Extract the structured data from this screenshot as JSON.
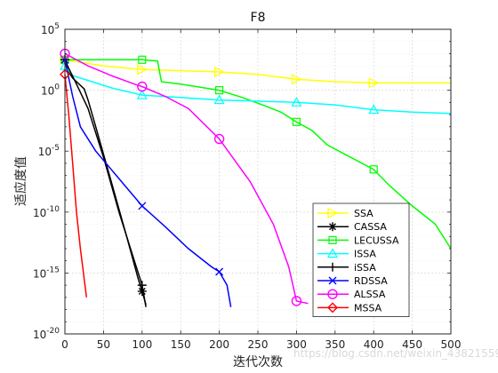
{
  "chart_data": {
    "type": "line",
    "title": "F8",
    "xlabel": "迭代次数",
    "ylabel": "适应度值",
    "xlim": [
      0,
      500
    ],
    "ylim_log10": [
      -20,
      5
    ],
    "yscale": "log",
    "x_ticks": [
      "0",
      "50",
      "100",
      "150",
      "200",
      "250",
      "300",
      "350",
      "400",
      "450",
      "500"
    ],
    "y_ticks": [
      {
        "base": "10",
        "exp": "5"
      },
      {
        "base": "10",
        "exp": "0"
      },
      {
        "base": "10",
        "exp": "-5"
      },
      {
        "base": "10",
        "exp": "-10"
      },
      {
        "base": "10",
        "exp": "-15"
      },
      {
        "base": "10",
        "exp": "-20"
      }
    ],
    "grid": true,
    "legend_position": "bottom-right",
    "series": [
      {
        "name": "SSA",
        "color": "#ffff00",
        "marker": "triangle-right",
        "points": [
          [
            0,
            2.5
          ],
          [
            50,
            2.0
          ],
          [
            100,
            1.7
          ],
          [
            150,
            1.6
          ],
          [
            200,
            1.5
          ],
          [
            250,
            1.3
          ],
          [
            300,
            0.9
          ],
          [
            350,
            0.7
          ],
          [
            400,
            0.6
          ],
          [
            450,
            0.6
          ],
          [
            500,
            0.6
          ]
        ],
        "marker_x": [
          0,
          100,
          200,
          300,
          400
        ]
      },
      {
        "name": "CASSA",
        "color": "#000000",
        "marker": "asterisk",
        "points": [
          [
            0,
            2.5
          ],
          [
            5,
            1.5
          ],
          [
            10,
            1.0
          ],
          [
            15,
            0.7
          ],
          [
            20,
            0.4
          ],
          [
            25,
            0.1
          ],
          [
            30,
            -0.8
          ],
          [
            40,
            -3.0
          ],
          [
            60,
            -7.5
          ],
          [
            80,
            -12.0
          ],
          [
            95,
            -15.5
          ],
          [
            100,
            -16.5
          ],
          [
            105,
            -17.6
          ]
        ],
        "marker_x": [
          0,
          100
        ]
      },
      {
        "name": "LECUSSA",
        "color": "#00ff00",
        "marker": "square",
        "points": [
          [
            0,
            2.5
          ],
          [
            50,
            2.5
          ],
          [
            100,
            2.5
          ],
          [
            120,
            2.4
          ],
          [
            125,
            0.7
          ],
          [
            150,
            0.5
          ],
          [
            200,
            0.0
          ],
          [
            230,
            -0.6
          ],
          [
            260,
            -1.3
          ],
          [
            280,
            -1.8
          ],
          [
            300,
            -2.6
          ],
          [
            320,
            -3.3
          ],
          [
            340,
            -4.5
          ],
          [
            370,
            -5.5
          ],
          [
            400,
            -6.5
          ],
          [
            420,
            -7.8
          ],
          [
            450,
            -9.5
          ],
          [
            480,
            -11.0
          ],
          [
            500,
            -13.0
          ]
        ],
        "marker_x": [
          0,
          100,
          200,
          300,
          400
        ]
      },
      {
        "name": "ISSA",
        "color": "#00ffff",
        "marker": "triangle-up",
        "points": [
          [
            0,
            2.0
          ],
          [
            10,
            1.2
          ],
          [
            30,
            0.8
          ],
          [
            60,
            0.2
          ],
          [
            100,
            -0.4
          ],
          [
            150,
            -0.6
          ],
          [
            200,
            -0.8
          ],
          [
            250,
            -0.9
          ],
          [
            300,
            -1.0
          ],
          [
            350,
            -1.2
          ],
          [
            400,
            -1.6
          ],
          [
            450,
            -1.8
          ],
          [
            500,
            -1.9
          ]
        ],
        "marker_x": [
          0,
          100,
          200,
          300,
          400
        ]
      },
      {
        "name": "iSSA",
        "color": "#000000",
        "marker": "plus",
        "points": [
          [
            0,
            2.5
          ],
          [
            5,
            1.8
          ],
          [
            15,
            0.5
          ],
          [
            30,
            -1.5
          ],
          [
            50,
            -5.5
          ],
          [
            70,
            -10.0
          ],
          [
            90,
            -14.0
          ],
          [
            100,
            -16.0
          ],
          [
            105,
            -17.8
          ]
        ],
        "marker_x": [
          0,
          100
        ]
      },
      {
        "name": "RDSSA",
        "color": "#0000ff",
        "marker": "x",
        "points": [
          [
            0,
            2.5
          ],
          [
            10,
            -0.5
          ],
          [
            20,
            -3.0
          ],
          [
            40,
            -5.0
          ],
          [
            60,
            -6.5
          ],
          [
            80,
            -8.0
          ],
          [
            100,
            -9.5
          ],
          [
            130,
            -11.2
          ],
          [
            160,
            -13.0
          ],
          [
            190,
            -14.5
          ],
          [
            200,
            -14.9
          ],
          [
            210,
            -16.0
          ],
          [
            215,
            -17.8
          ]
        ],
        "marker_x": [
          0,
          100,
          200
        ]
      },
      {
        "name": "ALSSA",
        "color": "#ff00ff",
        "marker": "circle",
        "points": [
          [
            0,
            3.0
          ],
          [
            30,
            2.0
          ],
          [
            60,
            1.2
          ],
          [
            90,
            0.5
          ],
          [
            100,
            0.3
          ],
          [
            130,
            -0.5
          ],
          [
            160,
            -1.5
          ],
          [
            200,
            -4.0
          ],
          [
            240,
            -7.5
          ],
          [
            270,
            -11.0
          ],
          [
            290,
            -14.5
          ],
          [
            300,
            -17.3
          ],
          [
            315,
            -17.5
          ]
        ],
        "marker_x": [
          0,
          100,
          200,
          300
        ]
      },
      {
        "name": "MSSA",
        "color": "#ff0000",
        "marker": "diamond",
        "points": [
          [
            0,
            1.3
          ],
          [
            5,
            -2.0
          ],
          [
            10,
            -6.0
          ],
          [
            15,
            -10.0
          ],
          [
            20,
            -13.0
          ],
          [
            25,
            -15.5
          ],
          [
            28,
            -17.0
          ]
        ],
        "marker_x": [
          0
        ]
      }
    ]
  },
  "watermark": "https://blog.csdn.net/weixin_43821559"
}
